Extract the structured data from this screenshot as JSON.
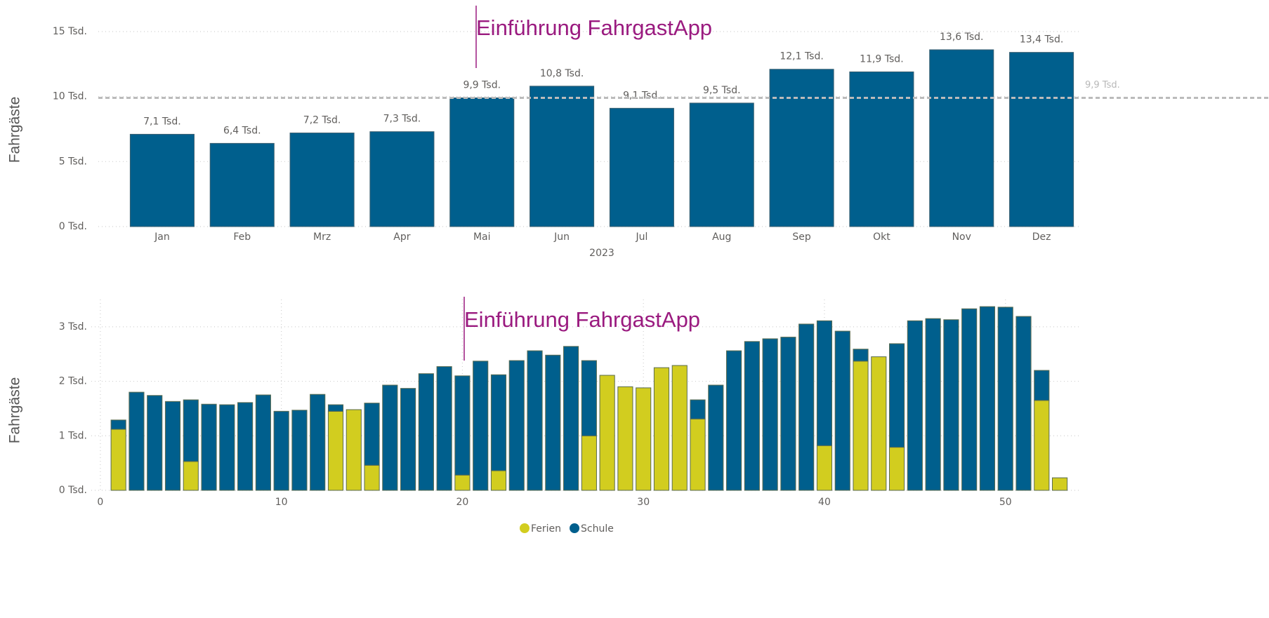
{
  "chart_data": [
    {
      "type": "bar",
      "y_label": "Fahrgäste",
      "x_label": "2023",
      "annotation": "Einführung FahrgastApp",
      "categories": [
        "Jan",
        "Feb",
        "Mrz",
        "Apr",
        "Mai",
        "Jun",
        "Jul",
        "Aug",
        "Sep",
        "Okt",
        "Nov",
        "Dez"
      ],
      "values": [
        7100,
        6400,
        7200,
        7300,
        9900,
        10800,
        9100,
        9500,
        12100,
        11900,
        13600,
        13400
      ],
      "value_labels": [
        "7,1 Tsd.",
        "6,4 Tsd.",
        "7,2 Tsd.",
        "7,3 Tsd.",
        "9,9 Tsd.",
        "10,8 Tsd.",
        "9,1 Tsd.",
        "9,5 Tsd.",
        "12,1 Tsd.",
        "11,9 Tsd.",
        "13,6 Tsd.",
        "13,4 Tsd."
      ],
      "color": "#005f8d",
      "reference_line": {
        "value": 9900,
        "label": "9,9 Tsd."
      },
      "ylim": [
        0,
        15000
      ],
      "yticks": [
        {
          "value": 0,
          "label": "0 Tsd."
        },
        {
          "value": 5000,
          "label": "5 Tsd."
        },
        {
          "value": 10000,
          "label": "10 Tsd."
        },
        {
          "value": 15000,
          "label": "15 Tsd."
        }
      ],
      "grid": true
    },
    {
      "type": "stacked_bar",
      "y_label": "Fahrgäste",
      "annotation": "Einführung FahrgastApp",
      "x": [
        1,
        2,
        3,
        4,
        5,
        6,
        7,
        8,
        9,
        10,
        11,
        12,
        13,
        14,
        15,
        16,
        17,
        18,
        19,
        20,
        21,
        22,
        23,
        24,
        25,
        26,
        27,
        28,
        29,
        30,
        31,
        32,
        33,
        34,
        35,
        36,
        37,
        38,
        39,
        40,
        41,
        42,
        43,
        44,
        45,
        46,
        47,
        48,
        49,
        50,
        51,
        52,
        53
      ],
      "series": [
        {
          "name": "Ferien",
          "color": "#d2cd1f",
          "values": [
            1120,
            0,
            0,
            0,
            530,
            0,
            0,
            0,
            0,
            0,
            0,
            0,
            1450,
            1480,
            460,
            0,
            0,
            0,
            0,
            280,
            0,
            360,
            0,
            0,
            0,
            0,
            1000,
            2110,
            1900,
            1880,
            2250,
            2290,
            1310,
            0,
            0,
            0,
            0,
            0,
            0,
            820,
            0,
            2370,
            2450,
            790,
            0,
            0,
            0,
            0,
            0,
            0,
            0,
            1650,
            230
          ]
        },
        {
          "name": "Schule",
          "color": "#005f8d",
          "values": [
            170,
            1800,
            1740,
            1630,
            1130,
            1580,
            1570,
            1610,
            1750,
            1450,
            1470,
            1760,
            120,
            0,
            1140,
            1930,
            1870,
            2140,
            2270,
            1820,
            2370,
            1760,
            2380,
            2560,
            2480,
            2640,
            1380,
            0,
            0,
            0,
            0,
            0,
            350,
            1930,
            2560,
            2730,
            2780,
            2810,
            3050,
            2290,
            2920,
            220,
            0,
            1900,
            3110,
            3150,
            3130,
            3330,
            3370,
            3360,
            3190,
            550,
            0
          ]
        }
      ],
      "xlim": [
        -0.5,
        54.2
      ],
      "xticks": [
        0,
        10,
        20,
        30,
        40,
        50
      ],
      "ylim": [
        0,
        3500
      ],
      "yticks": [
        {
          "value": 0,
          "label": "0 Tsd."
        },
        {
          "value": 1000,
          "label": "1 Tsd."
        },
        {
          "value": 2000,
          "label": "2 Tsd."
        },
        {
          "value": 3000,
          "label": "3 Tsd."
        }
      ],
      "grid": true,
      "legend": "bottom"
    }
  ]
}
